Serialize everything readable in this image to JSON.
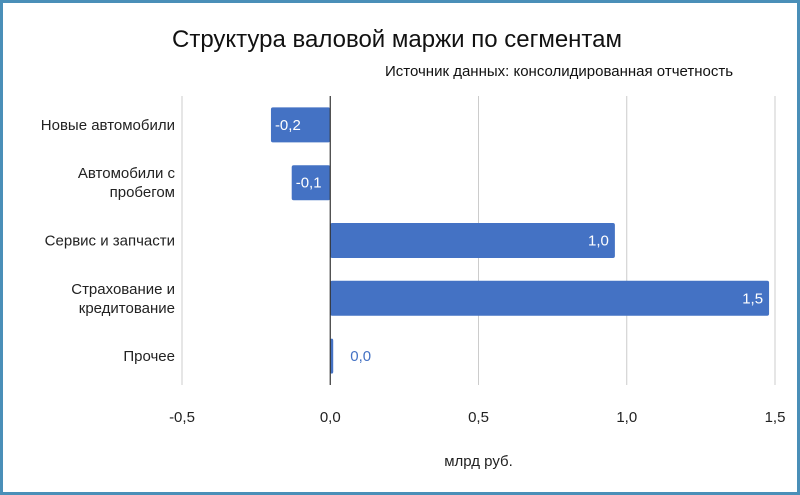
{
  "chart_data": {
    "type": "bar",
    "orientation": "horizontal",
    "title": "Структура валовой маржи по сегментам",
    "subtitle": "Источник данных: консолидированная отчетность",
    "xlabel": "млрд руб.",
    "ylabel": "",
    "xlim": [
      -0.5,
      1.5
    ],
    "x_ticks": [
      -0.5,
      0.0,
      0.5,
      1.0,
      1.5
    ],
    "x_tick_labels": [
      "-0,5",
      "0,0",
      "0,5",
      "1,0",
      "1,5"
    ],
    "grid": true,
    "legend": "none",
    "categories": [
      [
        "Новые автомобили"
      ],
      [
        "Автомобили с",
        "пробегом"
      ],
      [
        "Сервис и запчасти"
      ],
      [
        "Страхование и",
        "кредитование"
      ],
      [
        "Прочее"
      ]
    ],
    "values": [
      -0.2,
      -0.13,
      0.96,
      1.48,
      0.01
    ],
    "data_labels": [
      "-0,2",
      "-0,1",
      "1,0",
      "1,5",
      "0,0"
    ],
    "bar_color": "#4472c4",
    "label_inside_color": "#ffffff",
    "label_outside_color": "#4472c4"
  }
}
